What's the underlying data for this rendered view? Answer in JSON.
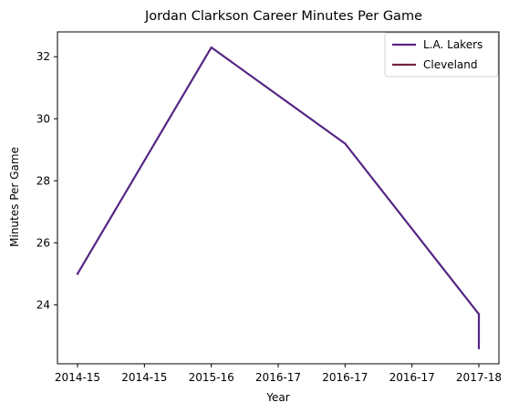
{
  "chart_data": {
    "type": "line",
    "title": "Jordan Clarkson Career Minutes Per Game",
    "xlabel": "Year",
    "ylabel": "Minutes Per Game",
    "x_tick_labels": [
      "2014-15",
      "2014-15",
      "2015-16",
      "2016-17",
      "2016-17",
      "2016-17",
      "2017-18"
    ],
    "x_range": [
      -0.15,
      3.15
    ],
    "y_range": [
      22.1,
      32.8
    ],
    "y_ticks": [
      24,
      26,
      28,
      30,
      32
    ],
    "grid": false,
    "legend_position": "top-right",
    "series": [
      {
        "name": "L.A. Lakers",
        "color": "#552583",
        "points": [
          {
            "x": 0,
            "y": 25.0
          },
          {
            "x": 1,
            "y": 32.3
          },
          {
            "x": 2,
            "y": 29.2
          },
          {
            "x": 3,
            "y": 23.7
          }
        ]
      },
      {
        "name": "Cleveland",
        "color": "#6f263d",
        "points": [
          {
            "x": 3,
            "y": 22.6
          }
        ]
      }
    ],
    "connector": {
      "color": "#552583",
      "from": {
        "x": 3,
        "y": 23.7
      },
      "to": {
        "x": 3,
        "y": 22.6
      }
    }
  }
}
